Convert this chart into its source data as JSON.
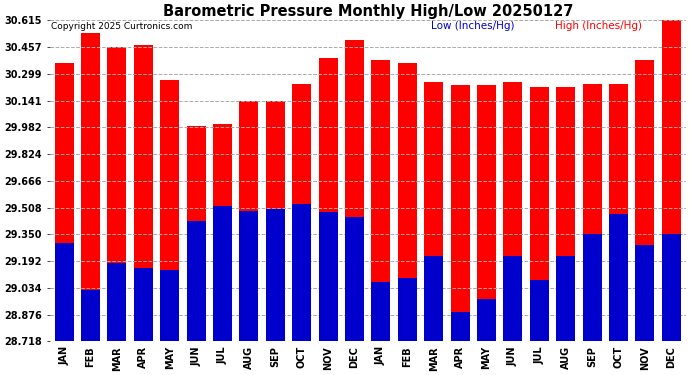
{
  "title": "Barometric Pressure Monthly High/Low 20250127",
  "copyright": "Copyright 2025 Curtronics.com",
  "legend_low": "Low (Inches/Hg)",
  "legend_high": "High (Inches/Hg)",
  "months": [
    "JAN",
    "FEB",
    "MAR",
    "APR",
    "MAY",
    "JUN",
    "JUL",
    "AUG",
    "SEP",
    "OCT",
    "NOV",
    "DEC",
    "JAN",
    "FEB",
    "MAR",
    "APR",
    "MAY",
    "JUN",
    "JUL",
    "AUG",
    "SEP",
    "OCT",
    "NOV",
    "DEC"
  ],
  "high_values": [
    30.36,
    30.54,
    30.46,
    30.47,
    30.26,
    29.99,
    30.0,
    30.14,
    30.14,
    30.24,
    30.39,
    30.5,
    30.38,
    30.36,
    30.25,
    30.23,
    30.23,
    30.25,
    30.22,
    30.22,
    30.24,
    30.24,
    30.38,
    30.62
  ],
  "low_values": [
    29.3,
    29.02,
    29.18,
    29.15,
    29.14,
    29.43,
    29.52,
    29.49,
    29.5,
    29.53,
    29.48,
    29.45,
    29.07,
    29.09,
    29.22,
    28.89,
    28.97,
    29.22,
    29.08,
    29.22,
    29.35,
    29.47,
    29.29,
    29.35
  ],
  "bar_color_high": "#ff0000",
  "bar_color_low": "#0000cc",
  "background_color": "#ffffff",
  "title_color": "#000000",
  "copyright_color": "#000000",
  "legend_low_color": "#0000cc",
  "legend_high_color": "#ff0000",
  "yticks": [
    28.718,
    28.876,
    29.034,
    29.192,
    29.35,
    29.508,
    29.666,
    29.824,
    29.982,
    30.141,
    30.299,
    30.457,
    30.615
  ],
  "ymin": 28.718,
  "ymax": 30.615,
  "grid_color": "#aaaaaa",
  "grid_style": "--",
  "tick_label_color": "#000000",
  "bar_width": 0.72,
  "figwidth": 6.9,
  "figheight": 3.75,
  "dpi": 100
}
